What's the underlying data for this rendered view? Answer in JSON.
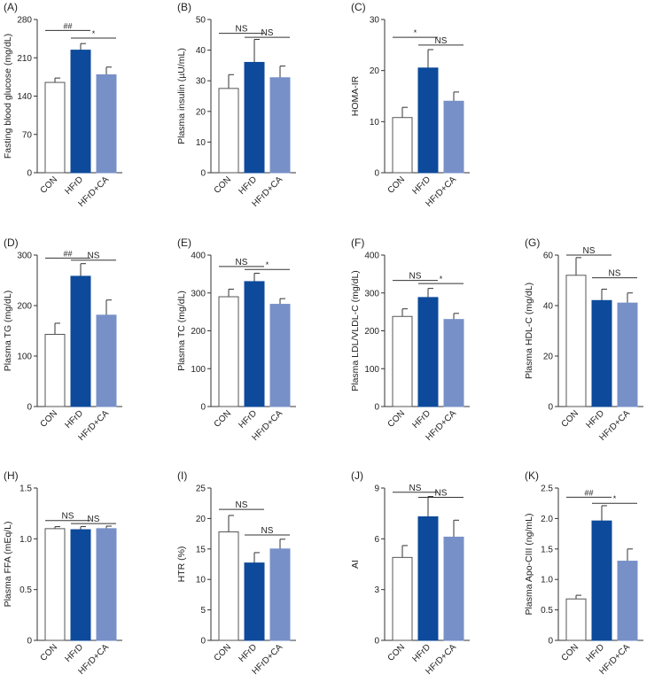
{
  "colors": {
    "con": "#ffffff",
    "hfrd": "#0d4a9b",
    "hfrdca": "#7890c8",
    "axis": "#333333",
    "sig": "#333333",
    "error": "#333333"
  },
  "groups": [
    "CON",
    "HFrD",
    "HFrD+CA"
  ],
  "chart_data": [
    {
      "type": "bar",
      "panel": "(A)",
      "ylabel": "Fasting blood glucose (mg/dL)",
      "ylim": [
        0,
        280
      ],
      "ticks": [
        "0",
        "70",
        "140",
        "210",
        "280"
      ],
      "categories": [
        "CON",
        "HFrD",
        "HFrD+CA"
      ],
      "values": [
        165,
        224,
        179
      ],
      "errors": [
        8,
        12,
        14
      ],
      "sig": [
        {
          "from": 0,
          "to": 1,
          "level": 260,
          "label": "##"
        },
        {
          "from": 1,
          "to": 2,
          "level": 246,
          "label": "*"
        }
      ]
    },
    {
      "type": "bar",
      "panel": "(B)",
      "ylabel": "Plasma insulin (µU/mL)",
      "ylim": [
        0,
        50
      ],
      "ticks": [
        "0",
        "10",
        "20",
        "30",
        "40",
        "50"
      ],
      "categories": [
        "CON",
        "HFrD",
        "HFrD+CA"
      ],
      "values": [
        27.5,
        36,
        31
      ],
      "errors": [
        4.5,
        7.5,
        3.8
      ],
      "sig": [
        {
          "from": 0,
          "to": 1,
          "level": 45.5,
          "label": "NS"
        },
        {
          "from": 1,
          "to": 2,
          "level": 44.2,
          "label": "NS"
        }
      ]
    },
    {
      "type": "bar",
      "panel": "(C)",
      "ylabel": "HOMA-IR",
      "ylim": [
        0,
        30
      ],
      "ticks": [
        "0",
        "10",
        "20",
        "30"
      ],
      "categories": [
        "CON",
        "HFrD",
        "HFrD+CA"
      ],
      "values": [
        10.8,
        20.5,
        14
      ],
      "errors": [
        2,
        3.6,
        1.8
      ],
      "sig": [
        {
          "from": 0,
          "to": 1,
          "level": 26.5,
          "label": "*"
        },
        {
          "from": 1,
          "to": 2,
          "level": 25,
          "label": "NS"
        }
      ]
    },
    {
      "type": "bar",
      "panel": "(D)",
      "ylabel": "Plasma TG (mg/dL)",
      "ylim": [
        0,
        300
      ],
      "ticks": [
        "0",
        "100",
        "200",
        "300"
      ],
      "categories": [
        "CON",
        "HFrD",
        "HFrD+CA"
      ],
      "values": [
        143,
        258,
        181
      ],
      "errors": [
        22,
        25,
        30
      ],
      "sig": [
        {
          "from": 0,
          "to": 1,
          "level": 294,
          "label": "##"
        },
        {
          "from": 1,
          "to": 2,
          "level": 290,
          "label": "NS"
        }
      ]
    },
    {
      "type": "bar",
      "panel": "(E)",
      "ylabel": "Plasma TC (mg/dL)",
      "ylim": [
        0,
        400
      ],
      "ticks": [
        "0",
        "100",
        "200",
        "300",
        "400"
      ],
      "categories": [
        "CON",
        "HFrD",
        "HFrD+CA"
      ],
      "values": [
        290,
        330,
        270
      ],
      "errors": [
        20,
        22,
        15
      ],
      "sig": [
        {
          "from": 0,
          "to": 1,
          "level": 370,
          "label": "NS"
        },
        {
          "from": 1,
          "to": 2,
          "level": 362,
          "label": "*"
        }
      ]
    },
    {
      "type": "bar",
      "panel": "(F)",
      "ylabel": "Plasma LDL/VLDL-C (mg/dL)",
      "ylim": [
        0,
        400
      ],
      "ticks": [
        "0",
        "100",
        "200",
        "300",
        "400"
      ],
      "categories": [
        "CON",
        "HFrD",
        "HFrD+CA"
      ],
      "values": [
        238,
        288,
        230
      ],
      "errors": [
        20,
        24,
        16
      ],
      "sig": [
        {
          "from": 0,
          "to": 1,
          "level": 333,
          "label": "NS"
        },
        {
          "from": 1,
          "to": 2,
          "level": 325,
          "label": "*"
        }
      ]
    },
    {
      "type": "bar",
      "panel": "(G)",
      "ylabel": "Plasma HDL-C (mg/dL)",
      "ylim": [
        0,
        60
      ],
      "ticks": [
        "0",
        "20",
        "40",
        "60"
      ],
      "categories": [
        "CON",
        "HFrD",
        "HFrD+CA"
      ],
      "values": [
        52,
        42,
        41
      ],
      "errors": [
        7,
        4.5,
        4
      ],
      "sig": [
        {
          "from": 0,
          "to": 1,
          "level": 60,
          "label": "NS"
        },
        {
          "from": 1,
          "to": 2,
          "level": 51,
          "label": "NS"
        }
      ]
    },
    {
      "type": "bar",
      "panel": "(H)",
      "ylabel": "Plasma FFA (mEq/L)",
      "ylim": [
        0,
        1.5
      ],
      "ticks": [
        "0",
        "0.5",
        "1.0",
        "1.5"
      ],
      "categories": [
        "CON",
        "HFrD",
        "HFrD+CA"
      ],
      "values": [
        1.1,
        1.09,
        1.1
      ],
      "errors": [
        0.02,
        0.03,
        0.025
      ],
      "sig": [
        {
          "from": 0,
          "to": 1,
          "level": 1.18,
          "label": "NS"
        },
        {
          "from": 1,
          "to": 2,
          "level": 1.15,
          "label": "NS"
        }
      ]
    },
    {
      "type": "bar",
      "panel": "(I)",
      "ylabel": "HTR (%)",
      "ylim": [
        0,
        25
      ],
      "ticks": [
        "0",
        "5",
        "10",
        "15",
        "20",
        "25"
      ],
      "categories": [
        "CON",
        "HFrD",
        "HFrD+CA"
      ],
      "values": [
        17.8,
        12.7,
        15
      ],
      "errors": [
        2.7,
        1.7,
        1.6
      ],
      "sig": [
        {
          "from": 0,
          "to": 1,
          "level": 21.5,
          "label": "NS"
        },
        {
          "from": 1,
          "to": 2,
          "level": 17.3,
          "label": "NS"
        }
      ]
    },
    {
      "type": "bar",
      "panel": "(J)",
      "ylabel": "AI",
      "ylim": [
        0,
        9
      ],
      "ticks": [
        "0",
        "3",
        "6",
        "9"
      ],
      "categories": [
        "CON",
        "HFrD",
        "HFrD+CA"
      ],
      "values": [
        4.9,
        7.3,
        6.1
      ],
      "errors": [
        0.7,
        1.2,
        1
      ],
      "sig": [
        {
          "from": 0,
          "to": 1,
          "level": 8.75,
          "label": "NS"
        },
        {
          "from": 1,
          "to": 2,
          "level": 8.45,
          "label": "NS"
        }
      ]
    },
    {
      "type": "bar",
      "panel": "(K)",
      "ylabel": "Plasma Apo-CIII (ng/mL)",
      "ylim": [
        0,
        2.5
      ],
      "ticks": [
        "0",
        "0.5",
        "1.0",
        "1.5",
        "2.0",
        "2.5"
      ],
      "categories": [
        "CON",
        "HFrD",
        "HFrD+CA"
      ],
      "values": [
        0.68,
        1.96,
        1.3
      ],
      "errors": [
        0.06,
        0.25,
        0.2
      ],
      "sig": [
        {
          "from": 0,
          "to": 1,
          "level": 2.35,
          "label": "##"
        },
        {
          "from": 1,
          "to": 2,
          "level": 2.25,
          "label": "*"
        }
      ]
    }
  ]
}
